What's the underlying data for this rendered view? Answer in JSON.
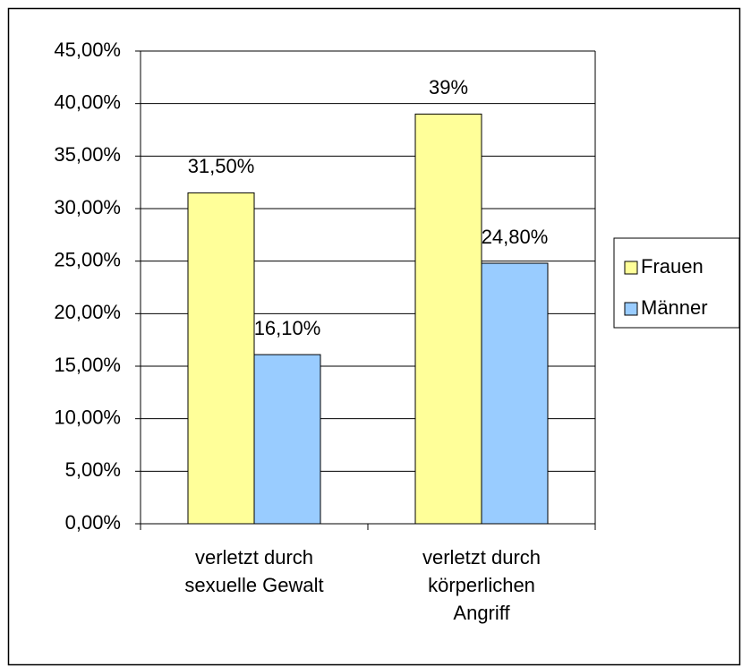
{
  "chart_data": {
    "type": "bar",
    "categories": [
      "verletzt durch sexuelle Gewalt",
      "verletzt durch körperlichen Angriff"
    ],
    "series": [
      {
        "name": "Frauen",
        "color": "#ffff99",
        "values": [
          31.5,
          39
        ],
        "value_labels": [
          "31,50%",
          "39%"
        ]
      },
      {
        "name": "Männer",
        "color": "#99ccff",
        "values": [
          16.1,
          24.8
        ],
        "value_labels": [
          "16,10%",
          "24,80%"
        ]
      }
    ],
    "ylim": [
      0,
      45
    ],
    "yticks": [
      {
        "value": 0,
        "label": "0,00%"
      },
      {
        "value": 5,
        "label": "5,00%"
      },
      {
        "value": 10,
        "label": "10,00%"
      },
      {
        "value": 15,
        "label": "15,00%"
      },
      {
        "value": 20,
        "label": "20,00%"
      },
      {
        "value": 25,
        "label": "25,00%"
      },
      {
        "value": 30,
        "label": "30,00%"
      },
      {
        "value": 35,
        "label": "35,00%"
      },
      {
        "value": 40,
        "label": "40,00%"
      },
      {
        "value": 45,
        "label": "45,00%"
      }
    ],
    "grid": true,
    "legend": "right"
  }
}
